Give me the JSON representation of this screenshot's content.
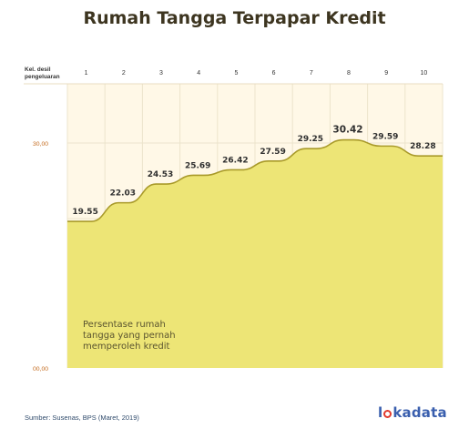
{
  "title": "Rumah Tangga Terpapar Kredit",
  "source": "Sumber: Susenas, BPS (Maret, 2019)",
  "logo": {
    "prefix": "l",
    "suffix": "kadata"
  },
  "colors": {
    "fill": "#ede576",
    "line": "#a99a2a",
    "background": "#fff8e7",
    "grid": "#ece4cc",
    "axis_label": "#c46b1e",
    "value_label": "#2f2f2f",
    "text": "#3d3520"
  },
  "chart_data": {
    "type": "area",
    "x_header": [
      "Kel. desil",
      "pengeluaran"
    ],
    "categories": [
      "1",
      "2",
      "3",
      "4",
      "5",
      "6",
      "7",
      "8",
      "9",
      "10"
    ],
    "values": [
      19.55,
      22.03,
      24.53,
      25.69,
      26.42,
      27.59,
      29.25,
      30.42,
      29.59,
      28.28
    ],
    "value_labels": [
      "19.55",
      "22.03",
      "24.53",
      "25.69",
      "26.42",
      "27.59",
      "29.25",
      "30.42",
      "29.59",
      "28.28"
    ],
    "y_ticks": [
      {
        "value": 0,
        "label": "00,00"
      },
      {
        "value": 30,
        "label": "30,00"
      }
    ],
    "ylim": [
      0,
      30
    ],
    "annotation": [
      "Persentase rumah",
      "tangga yang pernah",
      "memperoleh kredit"
    ],
    "grid": true
  }
}
